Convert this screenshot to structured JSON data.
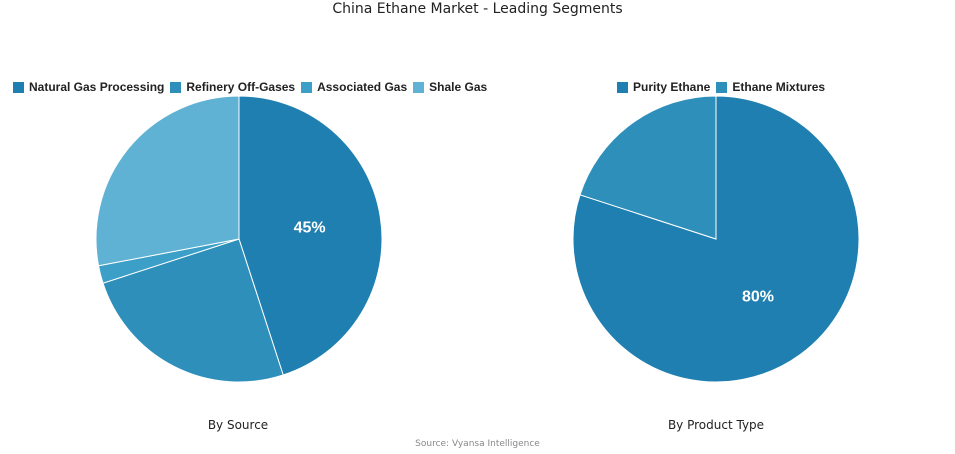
{
  "title": "China Ethane Market - Leading Segments",
  "source": "Source: Vyansa Intelligence",
  "chart_data": [
    {
      "type": "pie",
      "title": "By Source",
      "labels": [
        "Natural Gas Processing",
        "Refinery Off-Gases",
        "Associated Gas",
        "Shale Gas"
      ],
      "values": [
        45,
        25,
        2,
        28
      ],
      "colors": [
        "#1f7fb0",
        "#2e8fbb",
        "#3b9fc8",
        "#5fb2d4"
      ],
      "data_labels": [
        "45%",
        "",
        "",
        ""
      ],
      "legend": "top"
    },
    {
      "type": "pie",
      "title": "By Product Type",
      "labels": [
        "Purity Ethane",
        "Ethane Mixtures"
      ],
      "values": [
        80,
        20
      ],
      "colors": [
        "#1f7fb0",
        "#2e8fbb"
      ],
      "data_labels": [
        "80%",
        ""
      ],
      "legend": "top"
    }
  ]
}
